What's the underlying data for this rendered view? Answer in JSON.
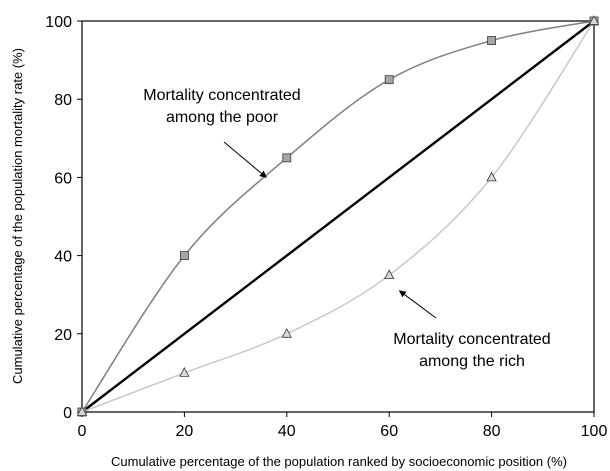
{
  "chart_data": {
    "type": "line",
    "title": "",
    "xlabel": "Cumulative percentage of the population ranked by socioeconomic position (%)",
    "ylabel": "Cumulative percentage of the population mortality rate (%)",
    "xlim": [
      0,
      100
    ],
    "ylim": [
      0,
      100
    ],
    "x_ticks": [
      0,
      20,
      40,
      60,
      80,
      100
    ],
    "y_ticks": [
      0,
      20,
      40,
      60,
      80,
      100
    ],
    "grid": false,
    "series": [
      {
        "marker": "square",
        "color": "#7f7f7f",
        "marker_fill": "#a6a6a6",
        "x": [
          0,
          20,
          40,
          60,
          80,
          100
        ],
        "y": [
          0,
          40,
          65,
          85,
          95,
          100
        ]
      },
      {
        "marker": "none",
        "color": "#000000",
        "x": [
          0,
          100
        ],
        "y": [
          0,
          100
        ]
      },
      {
        "marker": "triangle",
        "color": "#c8c8c8",
        "marker_fill": "#d9d9d9",
        "x": [
          0,
          20,
          40,
          60,
          80,
          100
        ],
        "y": [
          0,
          10,
          20,
          35,
          60,
          100
        ]
      }
    ],
    "annotations": [
      {
        "lines": [
          "Mortality concentrated",
          "among the poor"
        ],
        "points_to": {
          "x": 36,
          "y": 60
        }
      },
      {
        "lines": [
          "Mortality concentrated",
          "among the rich"
        ],
        "points_to": {
          "x": 62,
          "y": 31
        }
      }
    ]
  }
}
